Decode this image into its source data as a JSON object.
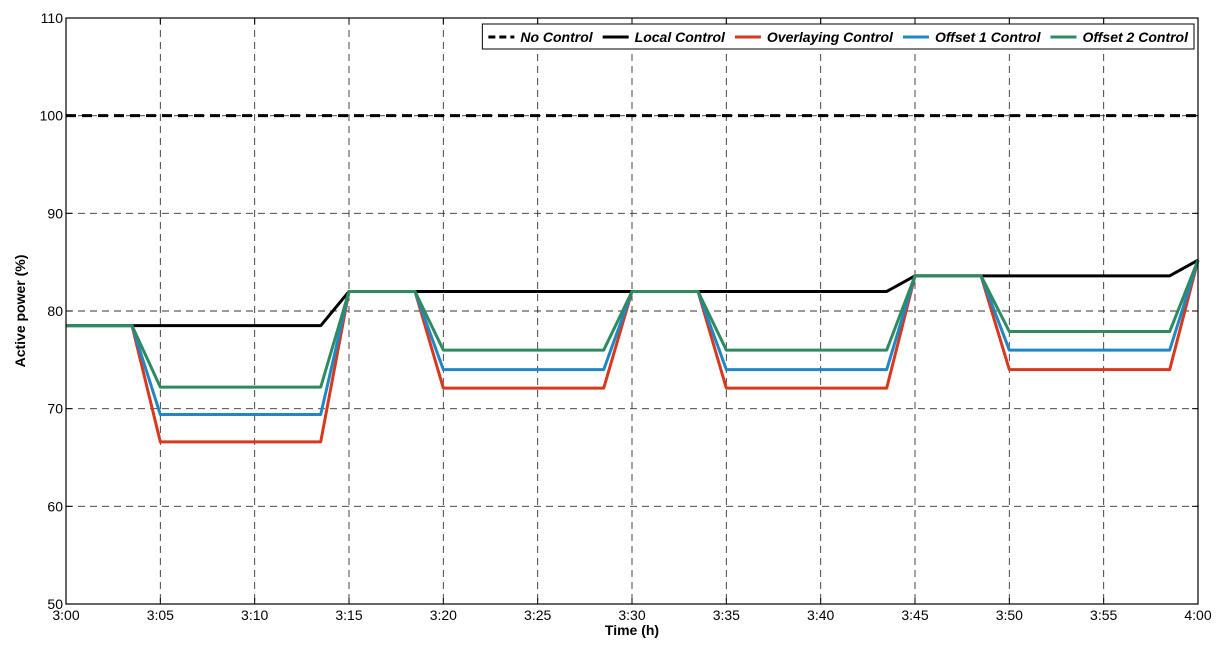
{
  "chart_data": {
    "type": "line",
    "title": "",
    "xlabel": "Time (h)",
    "ylabel": "Active power (%)",
    "xlim": [
      0,
      60
    ],
    "ylim": [
      50,
      110
    ],
    "grid": true,
    "grid_style": "dashed",
    "legend_placement": "top-right",
    "x_ticks": [
      {
        "value": 0,
        "label": "3:00"
      },
      {
        "value": 5,
        "label": "3:05"
      },
      {
        "value": 10,
        "label": "3:10"
      },
      {
        "value": 15,
        "label": "3:15"
      },
      {
        "value": 20,
        "label": "3:20"
      },
      {
        "value": 25,
        "label": "3:25"
      },
      {
        "value": 30,
        "label": "3:30"
      },
      {
        "value": 35,
        "label": "3:35"
      },
      {
        "value": 40,
        "label": "3:40"
      },
      {
        "value": 45,
        "label": "3:45"
      },
      {
        "value": 50,
        "label": "3:50"
      },
      {
        "value": 55,
        "label": "3:55"
      },
      {
        "value": 60,
        "label": "4:00"
      }
    ],
    "y_ticks": [
      {
        "value": 50,
        "label": "50"
      },
      {
        "value": 60,
        "label": "60"
      },
      {
        "value": 70,
        "label": "70"
      },
      {
        "value": 80,
        "label": "80"
      },
      {
        "value": 90,
        "label": "90"
      },
      {
        "value": 100,
        "label": "100"
      },
      {
        "value": 110,
        "label": "110"
      }
    ],
    "series": [
      {
        "name": "No Control",
        "color": "#000000",
        "dashed": true,
        "x": [
          0,
          60
        ],
        "y": [
          100,
          100
        ]
      },
      {
        "name": "Local Control",
        "color": "#000000",
        "dashed": false,
        "x": [
          0,
          3.5,
          13.5,
          15,
          43.5,
          45,
          58.5,
          60
        ],
        "y": [
          78.5,
          78.5,
          78.5,
          82,
          82,
          83.6,
          83.6,
          85.2
        ]
      },
      {
        "name": "Overlaying Control",
        "color": "#d7391f",
        "dashed": false,
        "x": [
          0,
          3.5,
          5,
          13.5,
          15,
          18.5,
          20,
          28.5,
          30,
          33.5,
          35,
          43.5,
          45,
          48.5,
          50,
          58.5,
          60
        ],
        "y": [
          78.5,
          78.5,
          66.6,
          66.6,
          82,
          82,
          72.1,
          72.1,
          82,
          82,
          72.1,
          72.1,
          83.6,
          83.6,
          74,
          74,
          85.2
        ]
      },
      {
        "name": "Offset 1 Control",
        "color": "#1f87c6",
        "dashed": false,
        "x": [
          0,
          3.5,
          5,
          13.5,
          15,
          18.5,
          20,
          28.5,
          30,
          33.5,
          35,
          43.5,
          45,
          48.5,
          50,
          58.5,
          60
        ],
        "y": [
          78.5,
          78.5,
          69.4,
          69.4,
          82,
          82,
          74,
          74,
          82,
          82,
          74,
          74,
          83.6,
          83.6,
          76,
          76,
          85.2
        ]
      },
      {
        "name": "Offset 2 Control",
        "color": "#2e8b60",
        "dashed": false,
        "x": [
          0,
          3.5,
          5,
          13.5,
          15,
          18.5,
          20,
          28.5,
          30,
          33.5,
          35,
          43.5,
          45,
          48.5,
          50,
          58.5,
          60
        ],
        "y": [
          78.5,
          78.5,
          72.2,
          72.2,
          82,
          82,
          76,
          76,
          82,
          82,
          76,
          76,
          83.6,
          83.6,
          77.9,
          77.9,
          85.2
        ]
      }
    ]
  }
}
